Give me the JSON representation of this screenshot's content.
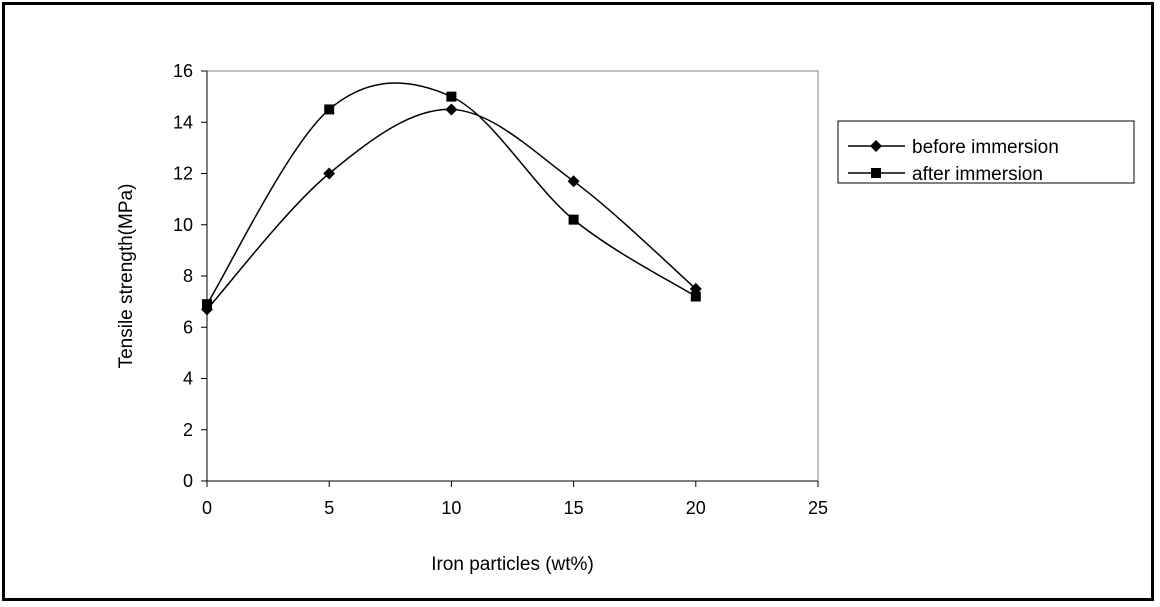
{
  "chart_data": {
    "type": "line",
    "title": "",
    "xlabel": "Iron particles (wt%)",
    "ylabel": "Tensile strength(MPa)",
    "xlim": [
      0,
      25
    ],
    "ylim": [
      0,
      16
    ],
    "x_ticks": [
      "0",
      "5",
      "10",
      "15",
      "20",
      "25"
    ],
    "y_ticks": [
      "0",
      "2",
      "4",
      "6",
      "8",
      "10",
      "12",
      "14",
      "16"
    ],
    "smoothed": true,
    "grid": false,
    "legend_position": "right",
    "series": [
      {
        "name": "before immersion",
        "marker": "diamond",
        "color": "#000000",
        "x": [
          0,
          5,
          10,
          15,
          20
        ],
        "y": [
          6.7,
          12.0,
          14.5,
          11.7,
          7.5
        ]
      },
      {
        "name": "after immersion",
        "marker": "square",
        "color": "#000000",
        "x": [
          0,
          5,
          10,
          15,
          20
        ],
        "y": [
          6.9,
          14.5,
          15.0,
          10.2,
          7.2
        ]
      }
    ]
  }
}
